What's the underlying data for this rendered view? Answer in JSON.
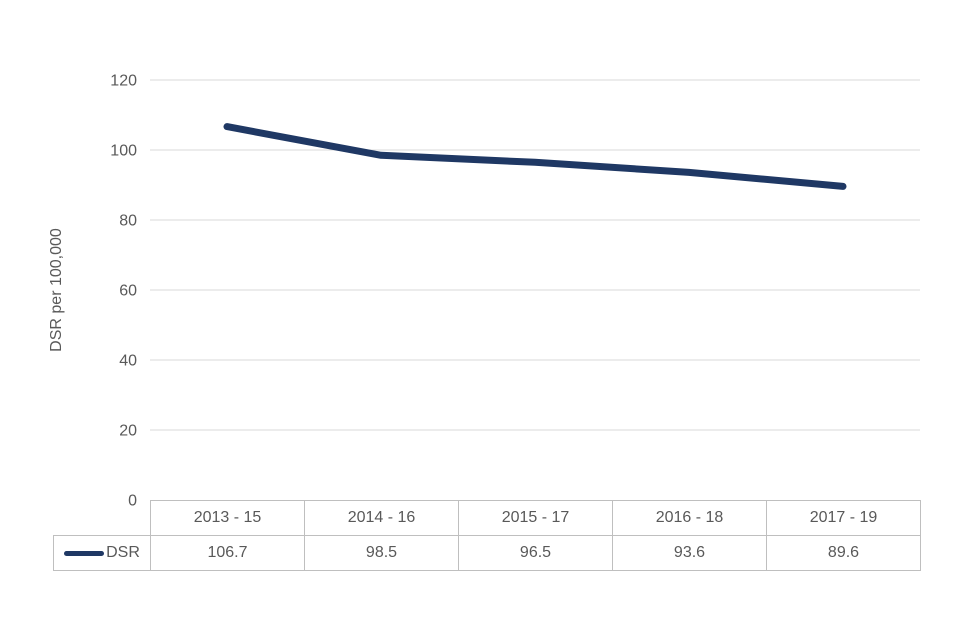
{
  "chart_data": {
    "type": "line",
    "title": "",
    "xlabel": "",
    "ylabel": "DSR per 100,000",
    "categories": [
      "2013 - 15",
      "2014 - 16",
      "2015 - 17",
      "2016 - 18",
      "2017 - 19"
    ],
    "series": [
      {
        "name": "DSR",
        "values": [
          106.7,
          98.5,
          96.5,
          93.6,
          89.6
        ],
        "color": "#1f3864"
      }
    ],
    "ylim": [
      0,
      120
    ],
    "yticks": [
      0,
      20,
      40,
      60,
      80,
      100,
      120
    ],
    "grid": true,
    "legend_position": "table-row-left",
    "table_values_text": [
      "106.7",
      "98.5",
      "96.5",
      "93.6",
      "89.6"
    ],
    "colors": {
      "line": "#1f3864",
      "gridline": "#d9d9d9",
      "axis_text": "#595959",
      "table_border": "#bfbfbf",
      "background": "#ffffff"
    }
  }
}
